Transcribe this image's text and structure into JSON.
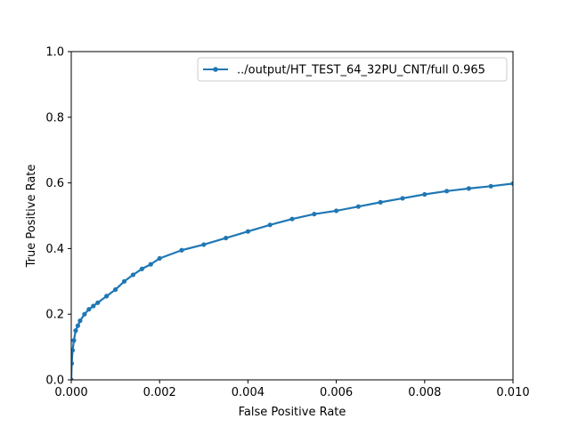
{
  "chart_data": {
    "type": "line",
    "title": "",
    "xlabel": "False Positive Rate",
    "ylabel": "True Positive Rate",
    "xlim": [
      0.0,
      0.01
    ],
    "ylim": [
      0.0,
      1.0
    ],
    "x_ticks": [
      "0.000",
      "0.002",
      "0.004",
      "0.006",
      "0.008",
      "0.010"
    ],
    "y_ticks": [
      "0.0",
      "0.2",
      "0.4",
      "0.6",
      "0.8",
      "1.0"
    ],
    "grid": false,
    "legend_position": "top-right",
    "series": [
      {
        "name": "../output/HT_TEST_64_32PU_CNT/full 0.965",
        "color": "#1f77b4",
        "marker": "dot",
        "x": [
          0.0,
          1e-05,
          3e-05,
          6e-05,
          0.0001,
          0.00015,
          0.0002,
          0.0003,
          0.0004,
          0.0005,
          0.0006,
          0.0008,
          0.001,
          0.0012,
          0.0014,
          0.0016,
          0.0018,
          0.002,
          0.0025,
          0.003,
          0.0035,
          0.004,
          0.0045,
          0.005,
          0.0055,
          0.006,
          0.0065,
          0.007,
          0.0075,
          0.008,
          0.0085,
          0.009,
          0.0095,
          0.01
        ],
        "y": [
          0.0,
          0.05,
          0.09,
          0.12,
          0.15,
          0.165,
          0.18,
          0.2,
          0.215,
          0.225,
          0.235,
          0.255,
          0.275,
          0.3,
          0.32,
          0.338,
          0.352,
          0.37,
          0.395,
          0.412,
          0.432,
          0.452,
          0.472,
          0.49,
          0.505,
          0.515,
          0.528,
          0.541,
          0.553,
          0.565,
          0.575,
          0.583,
          0.59,
          0.598
        ]
      }
    ]
  }
}
